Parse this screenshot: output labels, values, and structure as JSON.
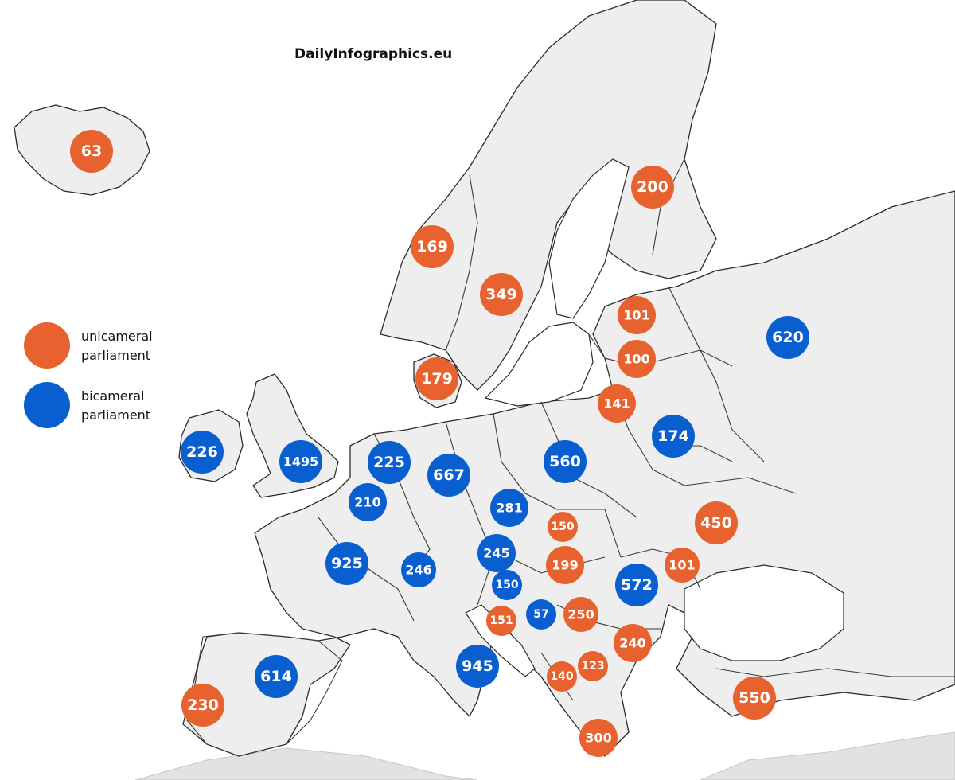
{
  "title": "DailyInfographics.eu",
  "colors": {
    "unicameral": "#e8622f",
    "bicameral": "#0a5fd0"
  },
  "legend": [
    {
      "type": "unicameral",
      "line1": "unicameral",
      "line2": "parliament"
    },
    {
      "type": "bicameral",
      "line1": "bicameral",
      "line2": "parliament"
    }
  ],
  "parliaments": [
    {
      "label": "63",
      "type": "unicameral"
    },
    {
      "label": "200",
      "type": "unicameral"
    },
    {
      "label": "169",
      "type": "unicameral"
    },
    {
      "label": "349",
      "type": "unicameral"
    },
    {
      "label": "101",
      "type": "unicameral"
    },
    {
      "label": "100",
      "type": "unicameral"
    },
    {
      "label": "620",
      "type": "bicameral"
    },
    {
      "label": "179",
      "type": "unicameral"
    },
    {
      "label": "141",
      "type": "unicameral"
    },
    {
      "label": "174",
      "type": "bicameral"
    },
    {
      "label": "226",
      "type": "bicameral"
    },
    {
      "label": "1495",
      "type": "bicameral"
    },
    {
      "label": "225",
      "type": "bicameral"
    },
    {
      "label": "667",
      "type": "bicameral"
    },
    {
      "label": "560",
      "type": "bicameral"
    },
    {
      "label": "210",
      "type": "bicameral"
    },
    {
      "label": "281",
      "type": "bicameral"
    },
    {
      "label": "150",
      "type": "unicameral"
    },
    {
      "label": "450",
      "type": "unicameral"
    },
    {
      "label": "925",
      "type": "bicameral"
    },
    {
      "label": "246",
      "type": "bicameral"
    },
    {
      "label": "245",
      "type": "bicameral"
    },
    {
      "label": "199",
      "type": "unicameral"
    },
    {
      "label": "101",
      "type": "unicameral"
    },
    {
      "label": "150",
      "type": "bicameral"
    },
    {
      "label": "572",
      "type": "bicameral"
    },
    {
      "label": "151",
      "type": "unicameral"
    },
    {
      "label": "57",
      "type": "bicameral"
    },
    {
      "label": "250",
      "type": "unicameral"
    },
    {
      "label": "240",
      "type": "unicameral"
    },
    {
      "label": "945",
      "type": "bicameral"
    },
    {
      "label": "123",
      "type": "unicameral"
    },
    {
      "label": "140",
      "type": "unicameral"
    },
    {
      "label": "614",
      "type": "bicameral"
    },
    {
      "label": "230",
      "type": "unicameral"
    },
    {
      "label": "550",
      "type": "unicameral"
    },
    {
      "label": "300",
      "type": "unicameral"
    }
  ]
}
